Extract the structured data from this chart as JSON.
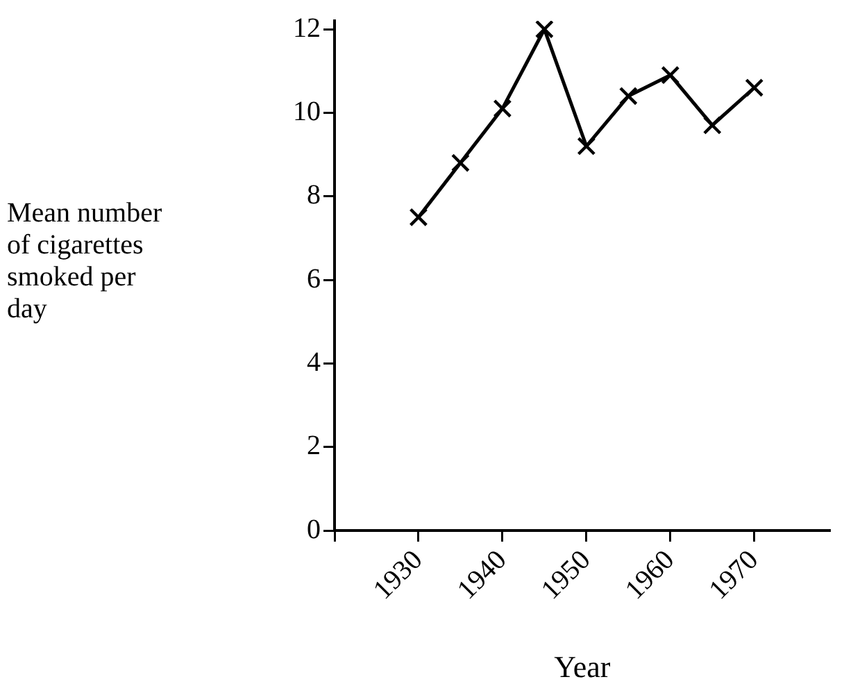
{
  "chart_data": {
    "type": "line",
    "xlabel": "Year",
    "ylabel": "Mean number of cigarettes smoked per day",
    "x": [
      1930,
      1935,
      1940,
      1945,
      1950,
      1955,
      1960,
      1965,
      1970
    ],
    "series": [
      {
        "color": "#000000",
        "values": [
          7.5,
          8.8,
          10.1,
          12.0,
          9.2,
          10.4,
          10.9,
          9.7,
          10.6
        ]
      }
    ],
    "xlim": [
      1920,
      1979
    ],
    "xticks": [
      {
        "value": 1920,
        "label": null
      },
      1930,
      1940,
      1950,
      1960,
      1970
    ],
    "ylim": [
      0,
      12.2
    ],
    "yticks": [
      0,
      2,
      4,
      6,
      8,
      10,
      12
    ],
    "grid": false,
    "legend": false,
    "marker": "cross",
    "line_style": "solid"
  }
}
